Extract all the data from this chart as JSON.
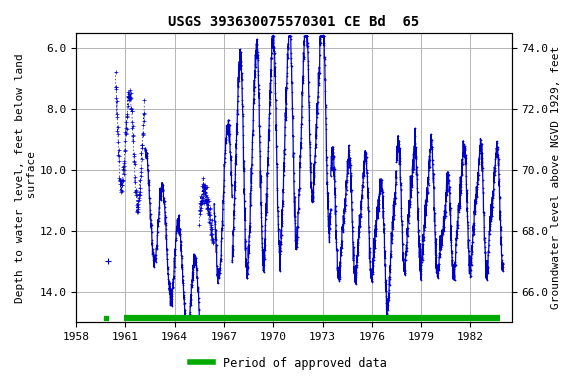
{
  "title": "USGS 393630075570301 CE Bd  65",
  "ylabel_left": "Depth to water level, feet below land\n surface",
  "ylabel_right": "Groundwater level above NGVD 1929, feet",
  "xlabel": "",
  "xlim": [
    1958.0,
    1984.5
  ],
  "ylim_left": [
    15.0,
    5.5
  ],
  "ylim_right": [
    65.0,
    74.5
  ],
  "xticks": [
    1958,
    1961,
    1964,
    1967,
    1970,
    1973,
    1976,
    1979,
    1982
  ],
  "yticks_left": [
    6.0,
    8.0,
    10.0,
    12.0,
    14.0
  ],
  "yticks_right": [
    66.0,
    68.0,
    70.0,
    72.0,
    74.0
  ],
  "line_color": "#0000cc",
  "approved_color": "#00aa00",
  "background_color": "#ffffff",
  "grid_color": "#aaaaaa",
  "title_fontsize": 10,
  "axis_label_fontsize": 8,
  "tick_fontsize": 8,
  "legend_label": "Period of approved data",
  "approved_start": 1960.9,
  "approved_end": 1983.8,
  "approved_small_x": 1959.8,
  "land_surface_elev": 80.0
}
